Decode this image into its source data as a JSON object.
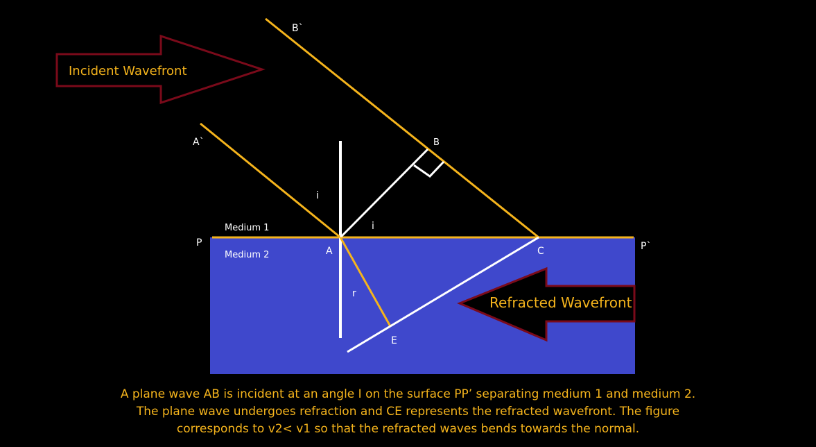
{
  "labels": {
    "b_prime": "B`",
    "a_prime": "A`",
    "b": "B",
    "a": "A",
    "c": "C",
    "e": "E",
    "p": "P",
    "p_prime": "P`",
    "i_upper": "i",
    "i_lower": "i",
    "r": "r",
    "medium1": "Medium 1",
    "medium2": "Medium 2"
  },
  "arrows": {
    "incident": "Incident Wavefront",
    "refracted": "Refracted Wavefront"
  },
  "caption": {
    "line1": "A plane wave AB is incident at an angle I on the surface PP’ separating medium 1 and medium 2.",
    "line2": "The plane wave undergoes refraction and CE represents the refracted wavefront. The figure",
    "line3": "corresponds to v2< v1 so that the refracted waves bends towards the normal."
  },
  "colors": {
    "background": "#000000",
    "medium2_fill": "#3f48cc",
    "ray": "#f5b41c",
    "wavefront_line": "#ffffff",
    "arrow_outline": "#7a0a1a",
    "text_accent": "#f5b41c"
  }
}
